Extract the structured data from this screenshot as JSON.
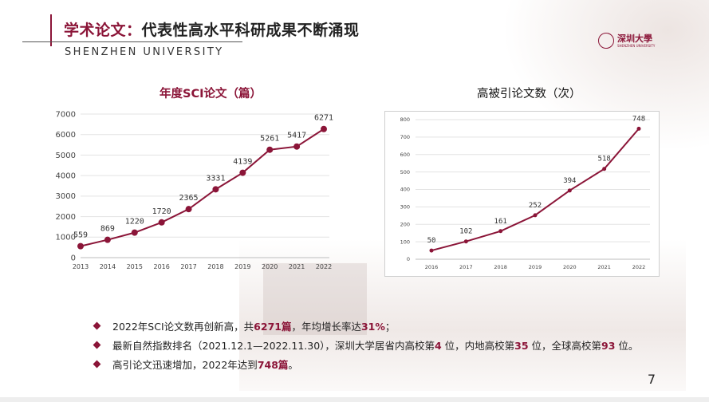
{
  "header": {
    "title_highlight": "学术论文：",
    "title_rest": "代表性高水平科研成果不断涌现",
    "university_en": "SHENZHEN UNIVERSITY",
    "logo_cn": "深圳大學",
    "logo_en": "SHENZHEN UNIVERSITY"
  },
  "chart_data": [
    {
      "type": "line",
      "title": "年度SCI论文（篇）",
      "x": [
        "2013",
        "2014",
        "2015",
        "2016",
        "2017",
        "2018",
        "2019",
        "2020",
        "2021",
        "2022"
      ],
      "values": [
        559,
        869,
        1220,
        1720,
        2365,
        3331,
        4139,
        5261,
        5417,
        6271
      ],
      "y_ticks": [
        "0",
        "1000",
        "2000",
        "3000",
        "4000",
        "5000",
        "6000",
        "7000"
      ],
      "ylim": [
        0,
        7000
      ],
      "grid": true,
      "color": "#8b1538"
    },
    {
      "type": "line",
      "title": "高被引论文数（次）",
      "x": [
        "2016",
        "2017",
        "2018",
        "2019",
        "2020",
        "2021",
        "2022"
      ],
      "values": [
        50,
        102,
        161,
        252,
        394,
        518,
        748
      ],
      "y_ticks": [
        "0",
        "100",
        "200",
        "300",
        "400",
        "500",
        "600",
        "700",
        "800"
      ],
      "ylim": [
        0,
        800
      ],
      "grid": true,
      "color": "#8b1538"
    }
  ],
  "bullets": [
    {
      "pre": "2022年SCI论文数再创新高，共",
      "b1": "6271篇",
      "mid1": "，年均增长率达",
      "b2": "31%",
      "mid2": "；",
      "b3": "",
      "post": ""
    },
    {
      "pre": "最新自然指数排名（2021.12.1—2022.11.30），深圳大学居省内高校第",
      "b1": "4",
      "mid1": " 位，内地高校第",
      "b2": "35",
      "mid2": " 位，全球高校第",
      "b3": "93",
      "post": " 位。"
    },
    {
      "pre": "高引论文迅速增加，2022年达到",
      "b1": "748篇",
      "mid1": "。",
      "b2": "",
      "mid2": "",
      "b3": "",
      "post": ""
    }
  ],
  "page_number": "7"
}
